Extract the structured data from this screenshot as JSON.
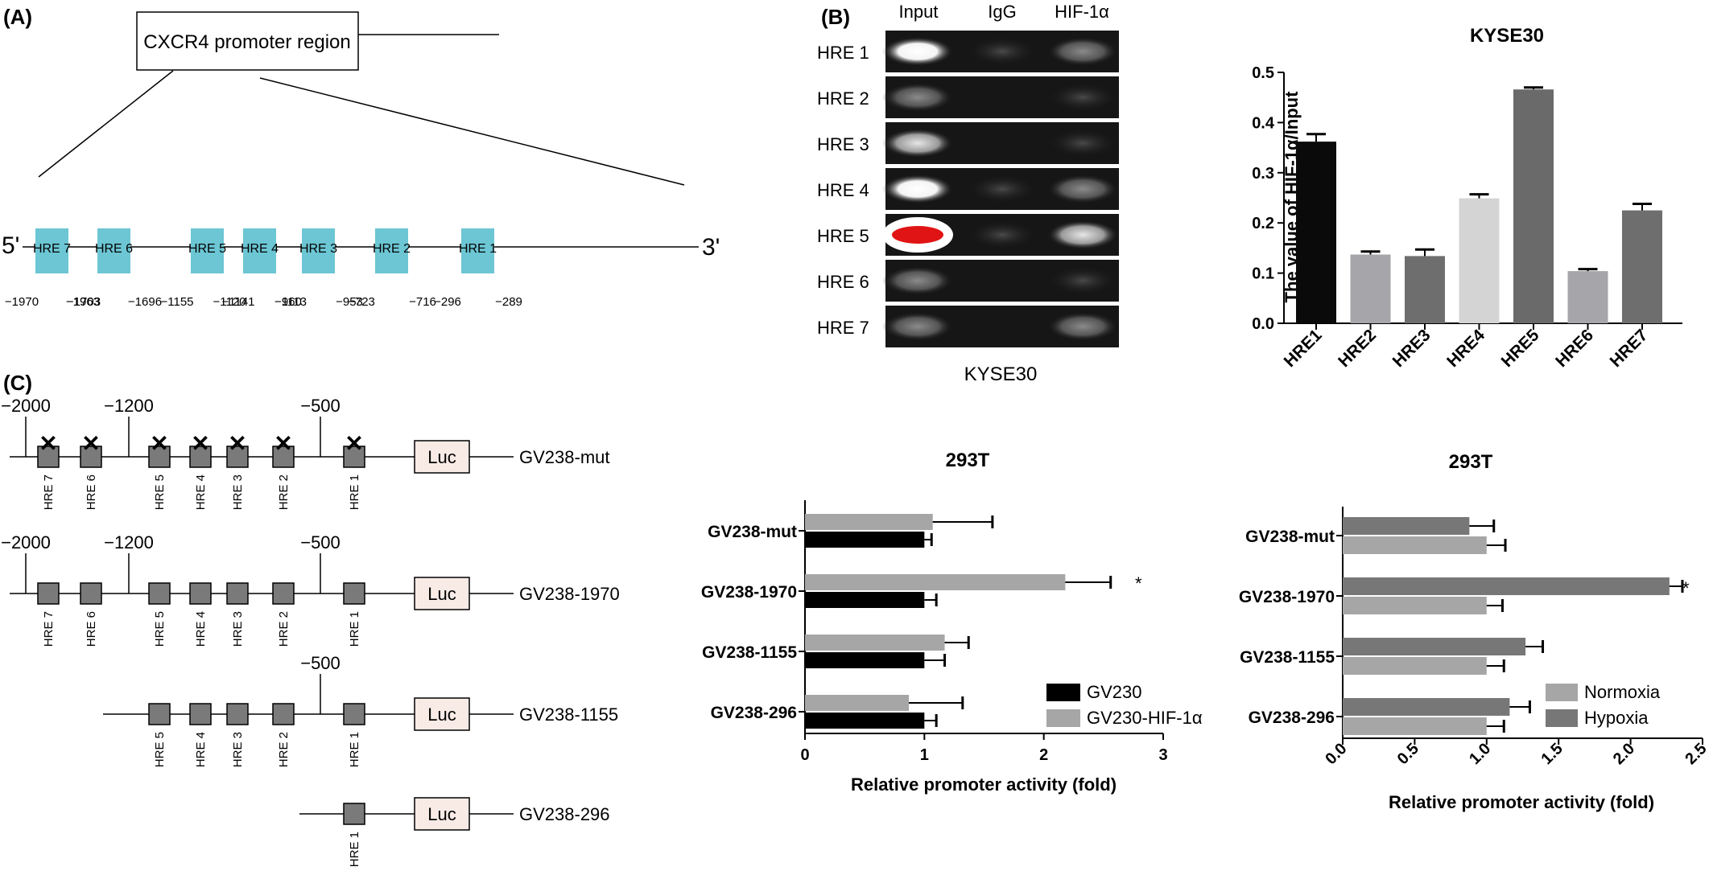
{
  "panel_A": {
    "label": "(A)",
    "promoter_label": "CXCR4 promoter region",
    "five_prime": "5'",
    "three_prime": "3'",
    "boxes": [
      {
        "name": "HRE 7",
        "coords": [
          "−1970",
          "−1963"
        ]
      },
      {
        "name": "HRE 6",
        "coords": [
          "−1703",
          "−1696"
        ]
      },
      {
        "name": "HRE 5",
        "coords": [
          "−1155",
          "−1141"
        ]
      },
      {
        "name": "HRE 4",
        "coords": [
          "−1120",
          "−1113"
        ]
      },
      {
        "name": "HRE 3",
        "coords": [
          "−960",
          "−953"
        ]
      },
      {
        "name": "HRE 2",
        "coords": [
          "−723",
          "−716"
        ]
      },
      {
        "name": "HRE 1",
        "coords": [
          "−296",
          "−289"
        ]
      }
    ],
    "box_color": "#6cc6d4"
  },
  "panel_B": {
    "label": "(B)",
    "lane_headers": [
      "Input",
      "IgG",
      "HIF-1α"
    ],
    "rows": [
      "HRE 1",
      "HRE 2",
      "HRE 3",
      "HRE 4",
      "HRE 5",
      "HRE 6",
      "HRE 7"
    ],
    "gel_caption": "KYSE30"
  },
  "panel_C": {
    "label": "(C)",
    "luc_label": "Luc",
    "constructs": [
      {
        "name": "GV238-mut",
        "markers": [
          "−2000",
          "−1200",
          "−500"
        ],
        "hre": [
          "HRE 7",
          "HRE 6",
          "HRE 5",
          "HRE 4",
          "HRE 3",
          "HRE 2",
          "HRE 1"
        ],
        "mutated": true
      },
      {
        "name": "GV238-1970",
        "markers": [
          "−2000",
          "−1200",
          "−500"
        ],
        "hre": [
          "HRE 7",
          "HRE 6",
          "HRE 5",
          "HRE 4",
          "HRE 3",
          "HRE 2",
          "HRE 1"
        ],
        "mutated": false
      },
      {
        "name": "GV238-1155",
        "markers": [
          "−500"
        ],
        "hre": [
          "HRE 5",
          "HRE 4",
          "HRE 3",
          "HRE 2",
          "HRE 1"
        ],
        "mutated": false
      },
      {
        "name": "GV238-296",
        "markers": [],
        "hre": [
          "HRE 1"
        ],
        "mutated": false
      }
    ]
  },
  "chart_data": [
    {
      "type": "bar",
      "title": "KYSE30",
      "ylabel": "The value of HIF-1α/Input",
      "categories": [
        "HRE1",
        "HRE2",
        "HRE3",
        "HRE4",
        "HRE5",
        "HRE6",
        "HRE7"
      ],
      "values": [
        0.362,
        0.137,
        0.134,
        0.249,
        0.466,
        0.104,
        0.225
      ],
      "errors": [
        0.015,
        0.006,
        0.013,
        0.008,
        0.004,
        0.004,
        0.013
      ],
      "colors": [
        "#0a0a0a",
        "#a6a6aa",
        "#6e6e6e",
        "#d4d4d4",
        "#6a6a6a",
        "#a6a6aa",
        "#6e6e6e"
      ],
      "ylim": [
        0,
        0.5
      ],
      "yticks": [
        "0.0",
        "0.1",
        "0.2",
        "0.3",
        "0.4",
        "0.5"
      ]
    },
    {
      "type": "bar",
      "orientation": "horizontal",
      "title": "293T",
      "xlabel": "Relative promoter activity (fold)",
      "categories": [
        "GV238-mut",
        "GV238-1970",
        "GV238-1155",
        "GV238-296"
      ],
      "series": [
        {
          "name": "GV230",
          "color": "#000000",
          "values": [
            1.0,
            1.0,
            1.0,
            1.0
          ],
          "errors": [
            0.06,
            0.1,
            0.17,
            0.1
          ]
        },
        {
          "name": "GV230-HIF-1α",
          "color": "#a6a6a6",
          "values": [
            1.07,
            2.18,
            1.17,
            0.87
          ],
          "errors": [
            0.5,
            0.38,
            0.2,
            0.45
          ]
        }
      ],
      "significance": [
        "",
        "*",
        "",
        ""
      ],
      "xlim": [
        0,
        3
      ],
      "xticks": [
        "0",
        "1",
        "2",
        "3"
      ]
    },
    {
      "type": "bar",
      "orientation": "horizontal",
      "title": "293T",
      "xlabel": "Relative promoter activity (fold)",
      "categories": [
        "GV238-mut",
        "GV238-1970",
        "GV238-1155",
        "GV238-296"
      ],
      "series": [
        {
          "name": "Normoxia",
          "color": "#a6a6a6",
          "values": [
            1.0,
            1.0,
            1.0,
            1.0
          ],
          "errors": [
            0.13,
            0.11,
            0.12,
            0.12
          ]
        },
        {
          "name": "Hypoxia",
          "color": "#777777",
          "values": [
            0.88,
            2.27,
            1.27,
            1.16
          ],
          "errors": [
            0.17,
            0.09,
            0.12,
            0.14
          ]
        }
      ],
      "significance": [
        "",
        "*",
        "",
        ""
      ],
      "xlim": [
        0,
        2.5
      ],
      "xticks": [
        "0.0",
        "0.5",
        "1.0",
        "1.5",
        "2.0",
        "2.5"
      ]
    }
  ]
}
